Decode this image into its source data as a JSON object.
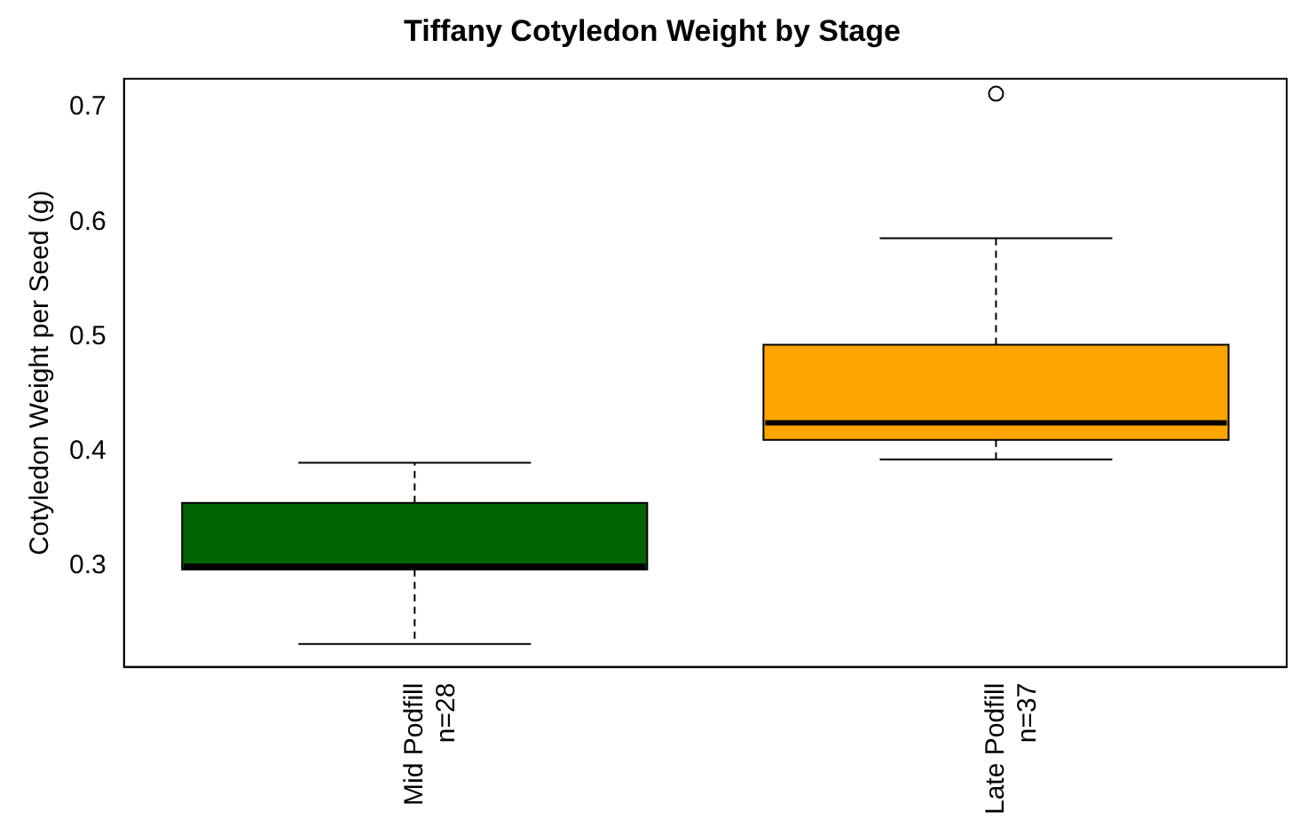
{
  "chart_data": {
    "type": "box",
    "title": "Tiffany Cotyledon Weight by Stage",
    "ylabel": "Cotyledon Weight per Seed (g)",
    "categories": [
      "Mid Podfill\nn=28",
      "Late Podfill\nn=37"
    ],
    "colors": [
      "#006400",
      "#ffa500"
    ],
    "boxes": [
      {
        "low": 0.232,
        "q1": 0.297,
        "median": 0.3,
        "q3": 0.355,
        "high": 0.39
      },
      {
        "low": 0.393,
        "q1": 0.41,
        "median": 0.425,
        "q3": 0.493,
        "high": 0.586,
        "outliers": [
          0.712
        ]
      }
    ],
    "ylim": [
      0.212,
      0.725
    ],
    "yticks": [
      0.3,
      0.4,
      0.5,
      0.6,
      0.7
    ],
    "grid": false,
    "legend": false
  }
}
